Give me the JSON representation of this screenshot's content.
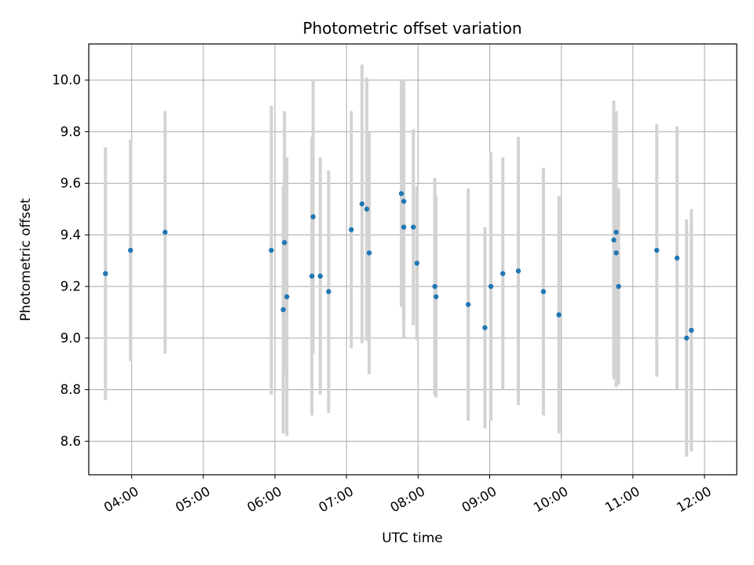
{
  "chart_data": {
    "type": "scatter",
    "title": "Photometric offset variation",
    "xlabel": "UTC time",
    "ylabel": "Photometric offset",
    "x_format": "HH:MM (UTC)",
    "xlim": [
      "03:24",
      "12:27"
    ],
    "ylim": [
      8.47,
      10.14
    ],
    "x_ticks": [
      "04:00",
      "05:00",
      "06:00",
      "07:00",
      "08:00",
      "09:00",
      "10:00",
      "11:00",
      "12:00"
    ],
    "y_ticks": [
      "8.6",
      "8.8",
      "9.0",
      "9.2",
      "9.4",
      "9.6",
      "9.8",
      "10.0"
    ],
    "grid": true,
    "colors": {
      "points": "#1f77b4",
      "error_bars": "#d3d3d3",
      "grid": "#b0b0b0"
    },
    "series": [
      {
        "points": [
          {
            "x": "03:38",
            "y": 9.25,
            "yerr": 0.49
          },
          {
            "x": "03:59",
            "y": 9.34,
            "yerr": 0.43
          },
          {
            "x": "04:28",
            "y": 9.41,
            "yerr": 0.47
          },
          {
            "x": "05:57",
            "y": 9.34,
            "yerr": 0.56
          },
          {
            "x": "06:07",
            "y": 9.11,
            "yerr": 0.48
          },
          {
            "x": "06:08",
            "y": 9.37,
            "yerr": 0.51
          },
          {
            "x": "06:10",
            "y": 9.16,
            "yerr": 0.54
          },
          {
            "x": "06:31",
            "y": 9.24,
            "yerr": 0.54
          },
          {
            "x": "06:32",
            "y": 9.47,
            "yerr": 0.53
          },
          {
            "x": "06:38",
            "y": 9.24,
            "yerr": 0.46
          },
          {
            "x": "06:45",
            "y": 9.18,
            "yerr": 0.47
          },
          {
            "x": "07:04",
            "y": 9.42,
            "yerr": 0.46
          },
          {
            "x": "07:13",
            "y": 9.52,
            "yerr": 0.54
          },
          {
            "x": "07:17",
            "y": 9.5,
            "yerr": 0.51
          },
          {
            "x": "07:19",
            "y": 9.33,
            "yerr": 0.47
          },
          {
            "x": "07:46",
            "y": 9.56,
            "yerr": 0.44
          },
          {
            "x": "07:48",
            "y": 9.53,
            "yerr": 0.47
          },
          {
            "x": "07:48",
            "y": 9.43,
            "yerr": 0.43
          },
          {
            "x": "07:56",
            "y": 9.43,
            "yerr": 0.38
          },
          {
            "x": "07:59",
            "y": 9.29,
            "yerr": 0.3
          },
          {
            "x": "08:14",
            "y": 9.2,
            "yerr": 0.42
          },
          {
            "x": "08:15",
            "y": 9.16,
            "yerr": 0.39
          },
          {
            "x": "08:42",
            "y": 9.13,
            "yerr": 0.45
          },
          {
            "x": "08:56",
            "y": 9.04,
            "yerr": 0.39
          },
          {
            "x": "09:01",
            "y": 9.2,
            "yerr": 0.52
          },
          {
            "x": "09:11",
            "y": 9.25,
            "yerr": 0.45
          },
          {
            "x": "09:24",
            "y": 9.26,
            "yerr": 0.52
          },
          {
            "x": "09:45",
            "y": 9.18,
            "yerr": 0.48
          },
          {
            "x": "09:58",
            "y": 9.09,
            "yerr": 0.46
          },
          {
            "x": "10:44",
            "y": 9.38,
            "yerr": 0.54
          },
          {
            "x": "10:46",
            "y": 9.33,
            "yerr": 0.52
          },
          {
            "x": "10:46",
            "y": 9.41,
            "yerr": 0.47
          },
          {
            "x": "10:48",
            "y": 9.2,
            "yerr": 0.38
          },
          {
            "x": "11:20",
            "y": 9.34,
            "yerr": 0.49
          },
          {
            "x": "11:37",
            "y": 9.31,
            "yerr": 0.51
          },
          {
            "x": "11:45",
            "y": 9.0,
            "yerr": 0.46
          },
          {
            "x": "11:49",
            "y": 9.03,
            "yerr": 0.47
          }
        ]
      }
    ]
  }
}
